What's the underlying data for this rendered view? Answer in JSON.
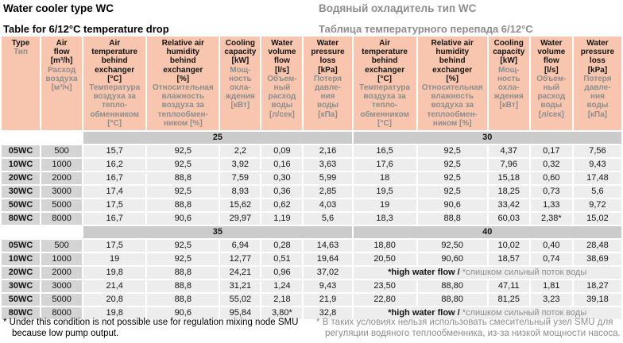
{
  "titles": {
    "en_title": "Water cooler type WC",
    "ru_title": "Водяный охладитель тип WC",
    "en_subtitle": "Table for 6/12°C temperature drop",
    "ru_subtitle": "Таблица температурного перепада 6/12°C"
  },
  "colors": {
    "header_bg": "#f8c6ae",
    "band_bg": "#cbcbcb",
    "type_cell_bg": "#d4d4d4",
    "data_cell_bg": "#ededed",
    "secondary_text": "#8d8d8d"
  },
  "header": {
    "cols": [
      {
        "key": "type",
        "en": "Type",
        "ru": "Тип"
      },
      {
        "key": "air-flow",
        "en": "Air\nflow\n[m³/h]",
        "ru": "Расход\nвоздуха\n[м³/ч]"
      },
      {
        "key": "air-temp-left",
        "en": "Air\ntemperature\nbehind\nexchanger\n[°C]",
        "ru": "Температура\nвоздуха за\nтепло-\nобменником\n[°C]"
      },
      {
        "key": "humidity-left",
        "en": "Relative air\nhumidity\nbehind\nexchanger\n[%]",
        "ru": "Относительная\nвлажность\nвоздуха за\nтеплообмен-\nником [%]"
      },
      {
        "key": "cooling-left",
        "en": "Cooling\ncapacity\n[kW]",
        "ru": "Мощ-\nность\nохла-\nждения\n[кВт]"
      },
      {
        "key": "volume-flow-left",
        "en": "Water\nvolume\nflow\n[l/s]",
        "ru": "Объем-\nный\nрасход\nводы\n[л/сек]"
      },
      {
        "key": "pressure-loss-left",
        "en": "Water\npressure\nloss\n[kPa]",
        "ru": "Потеря\nдавле-\nния\nводы\n[кПа]"
      },
      {
        "key": "air-temp-right",
        "en": "Air\ntemperature\nbehind\nexchanger\n[°C]",
        "ru": "Температура\nвоздуха за\nтепло-\nобменником\n[°C]"
      },
      {
        "key": "humidity-right",
        "en": "Relative air\nhumidity\nbehind\nexchanger\n[%]",
        "ru": "Относительная\nвлажность\nвоздуха за\nтеплообмен-\nником [%]"
      },
      {
        "key": "cooling-right",
        "en": "Cooling\ncapacity\n[kW]",
        "ru": "Мощ-\nность\nохла-\nждения\n[кВт]"
      },
      {
        "key": "volume-flow-right",
        "en": "Water\nvolume\nflow\n[l/s]",
        "ru": "Объем-\nный\nрасход\nводы\n[л/сек]"
      },
      {
        "key": "pressure-loss-right",
        "en": "Water\npressure\nloss\n[kPa]",
        "ru": "Потеря\nдавле-\nния\nводы\n[кПа]"
      }
    ]
  },
  "high_water_flow": {
    "en": "*high water flow / ",
    "ru": "*слишком сильный поток воды"
  },
  "blocks": [
    {
      "band_left": "25",
      "band_right": "30",
      "rows": [
        {
          "type": "05WC",
          "flow": "500",
          "left": [
            "15,7",
            "92,5",
            "2,2",
            "0,09",
            "2,16"
          ],
          "right": [
            "16,5",
            "92,5",
            "4,37",
            "0,17",
            "7,56"
          ]
        },
        {
          "type": "10WC",
          "flow": "1000",
          "left": [
            "16,2",
            "92,5",
            "3,92",
            "0,16",
            "3,63"
          ],
          "right": [
            "17,6",
            "92,5",
            "7,96",
            "0,32",
            "9,43"
          ]
        },
        {
          "type": "20WC",
          "flow": "2000",
          "left": [
            "16,7",
            "88,8",
            "7,59",
            "0,30",
            "5,99"
          ],
          "right": [
            "18",
            "92,5",
            "15,18",
            "0,60",
            "17,48"
          ]
        },
        {
          "type": "30WC",
          "flow": "3000",
          "left": [
            "17,4",
            "92,5",
            "8,93",
            "0,36",
            "2,85"
          ],
          "right": [
            "19,5",
            "92,5",
            "18,25",
            "0,73",
            "5,6"
          ]
        },
        {
          "type": "50WC",
          "flow": "5000",
          "left": [
            "17,5",
            "88,8",
            "15,62",
            "0,62",
            "4,03"
          ],
          "right": [
            "19",
            "90,6",
            "33,42",
            "1,33",
            "9,72"
          ]
        },
        {
          "type": "80WC",
          "flow": "8000",
          "left": [
            "16,7",
            "90,6",
            "29,97",
            "1,19",
            "5,6"
          ],
          "right": [
            "18,3",
            "88,8",
            "60,03",
            "2,38*",
            "15,02"
          ]
        }
      ]
    },
    {
      "band_left": "35",
      "band_right": "40",
      "rows": [
        {
          "type": "05WC",
          "flow": "500",
          "left": [
            "17,5",
            "92,5",
            "6,94",
            "0,28",
            "14,63"
          ],
          "right": [
            "18,80",
            "92,50",
            "10,02",
            "0,40",
            "28,48"
          ]
        },
        {
          "type": "10WC",
          "flow": "1000",
          "left": [
            "19",
            "92,5",
            "12,77",
            "0,51",
            "19,64"
          ],
          "right": [
            "20,50",
            "90,60",
            "18,57",
            "0,74",
            "38,69"
          ]
        },
        {
          "type": "20WC",
          "flow": "2000",
          "left": [
            "19,8",
            "88,8",
            "24,21",
            "0,96",
            "37,02"
          ],
          "right": null
        },
        {
          "type": "30WC",
          "flow": "3000",
          "left": [
            "21,4",
            "88,8",
            "31,21",
            "1,24",
            "9,43"
          ],
          "right": [
            "23,50",
            "88,80",
            "47,11",
            "1,81",
            "18,27"
          ]
        },
        {
          "type": "50WC",
          "flow": "5000",
          "left": [
            "20,8",
            "88,8",
            "55,02",
            "2,18",
            "21,9"
          ],
          "right": [
            "22,80",
            "88,80",
            "81,25",
            "3,23",
            "39,18"
          ]
        },
        {
          "type": "80WC",
          "flow": "8000",
          "left": [
            "19,8",
            "90,6",
            "95,84",
            "3,80*",
            "32,8"
          ],
          "right": null
        }
      ]
    }
  ],
  "footnotes": {
    "en": "* Under this condition is not possible use for regulation mixing node SMU\nbecause low pump output.",
    "ru": "* В таких условиях нельзя использовать смесительный узел SMU для\nрегуляции водяного теплообменника, из-за низкой мощности насоса."
  }
}
